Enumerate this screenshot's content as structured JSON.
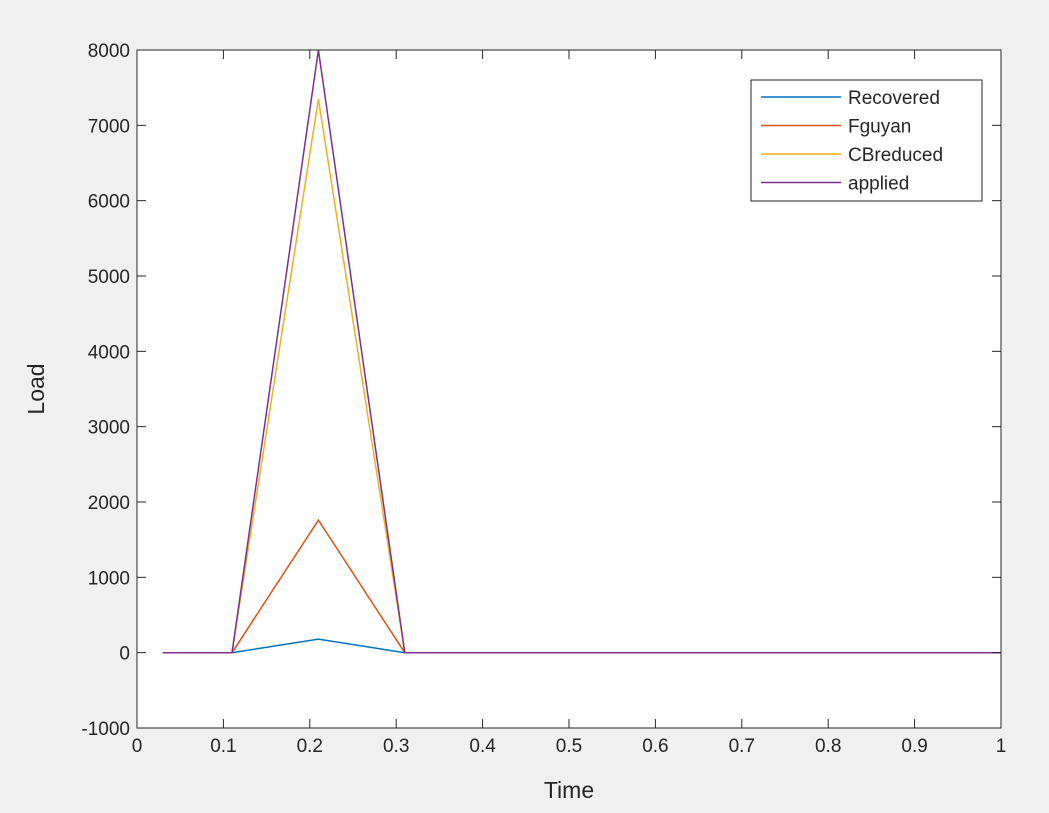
{
  "chart_data": {
    "type": "line",
    "xlabel": "Time",
    "ylabel": "Load",
    "xlim": [
      0,
      1
    ],
    "ylim": [
      -1000,
      8000
    ],
    "xticks": [
      "0",
      "0.1",
      "0.2",
      "0.3",
      "0.4",
      "0.5",
      "0.6",
      "0.7",
      "0.8",
      "0.9",
      "1"
    ],
    "yticks": [
      "-1000",
      "0",
      "1000",
      "2000",
      "3000",
      "4000",
      "5000",
      "6000",
      "7000",
      "8000"
    ],
    "grid": false,
    "legend_position": "top-right",
    "x": [
      0.03,
      0.11,
      0.21,
      0.31,
      1.0
    ],
    "series": [
      {
        "name": "Recovered",
        "color": "#0072bd",
        "values": [
          0,
          0,
          180,
          0,
          0
        ]
      },
      {
        "name": "Fguyan",
        "color": "#d95319",
        "values": [
          0,
          0,
          1760,
          0,
          0
        ]
      },
      {
        "name": "CBreduced",
        "color": "#edb120",
        "values": [
          0,
          0,
          7350,
          0,
          0
        ]
      },
      {
        "name": "applied",
        "color": "#7e2f8e",
        "values": [
          0,
          0,
          8000,
          0,
          0
        ]
      }
    ]
  }
}
